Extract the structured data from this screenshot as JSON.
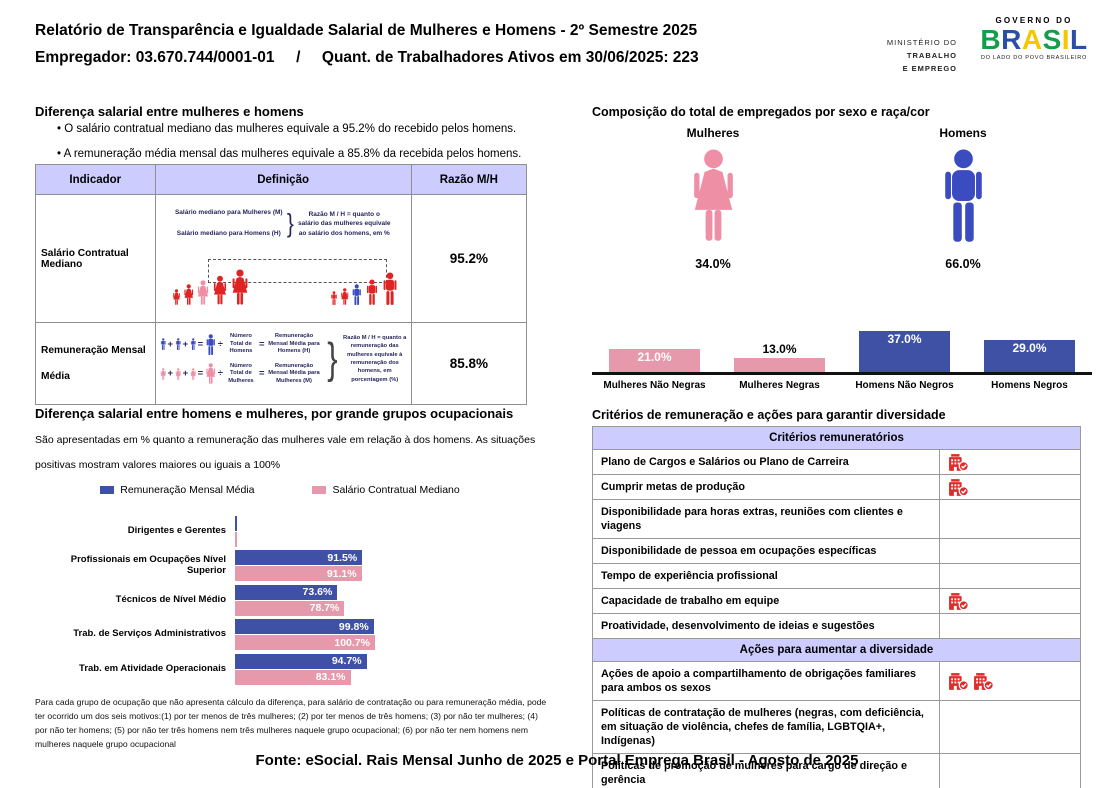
{
  "header": {
    "title_line1": "Relatório de Transparência e Igualdade Salarial de Mulheres e Homens - 2º Semestre 2025",
    "title_line2": "Empregador: 03.670.744/0001-01     /     Quant. de Trabalhadores Ativos em 30/06/2025: 223",
    "ministry": {
      "line1": "MINISTÉRIO DO",
      "line2": "TRABALHO",
      "line3": "E EMPREGO"
    },
    "gov_logo": {
      "top": "GOVERNO DO",
      "brand": "BRASIL",
      "bottom": "DO LADO DO POVO BRASILEIRO"
    }
  },
  "salary_gap": {
    "title": "Diferença salarial entre mulheres e homens",
    "bullets": [
      "O salário contratual mediano das mulheres equivale a 95.2% do recebido pelos homens.",
      "A remuneração média mensal das mulheres equivale a 85.8% da recebida pelos homens."
    ],
    "table": {
      "headers": [
        "Indicador",
        "Definição",
        "Razão M/H"
      ],
      "rows": [
        {
          "indicator": "Salário Contratual Mediano",
          "def_line1": "Salário mediano para Mulheres (M)",
          "def_line2": "Salário mediano para Homens (H)",
          "def_note": "Razão M / H = quanto o salário das mulheres equivale ao salário dos homens, em %",
          "ratio": "95.2%"
        },
        {
          "indicator": "Remuneração Mensal Média",
          "num_h": "Número Total de Homens",
          "rem_h": "Remuneração Mensal Média para Homens (H)",
          "num_m": "Número Total de Mulheres",
          "rem_m": "Remuneração Mensal Média para Mulheres (M)",
          "def_note": "Razão M / H = quanto a remuneração das mulheres equivale à remuneração dos homens, em porcentagem (%)",
          "ratio": "85.8%"
        }
      ]
    }
  },
  "symbols": {
    "plus": "+",
    "equals": "=",
    "divide": "÷",
    "brace": "}"
  },
  "occupational_chart": {
    "title": "Diferença salarial entre homens e mulheres, por grande grupos ocupacionais",
    "subtitle": "São apresentadas em % quanto a remuneração das mulheres vale em relação à dos homens. As situações positivas mostram valores maiores ou iguais a 100%",
    "footnote": "Para cada grupo de ocupação que não apresenta cálculo da diferença, para salário de contratação ou para remuneração média, pode ter ocorrido um dos seis motivos:(1) por ter menos de três mulheres; (2) por ter menos de três homens; (3) por não ter mulheres; (4) por não ter homens; (5) por não ter três homens nem três mulheres naquele grupo ocupacional; (6) por não ter nem homens nem mulheres naquele grupo ocupacional",
    "chart_data": {
      "type": "bar",
      "orientation": "horizontal",
      "categories": [
        "Dirigentes e Gerentes",
        "Profissionais em Ocupações Nível Superior",
        "Técnicos de Nível Médio",
        "Trab. de Serviços Administrativos",
        "Trab. em Atividade Operacionais"
      ],
      "series": [
        {
          "name": "Remuneração Mensal Média",
          "color": "#3f51a5",
          "values": [
            null,
            91.5,
            73.6,
            99.8,
            94.7
          ]
        },
        {
          "name": "Salário Contratual Mediano",
          "color": "#e599aa",
          "values": [
            null,
            91.1,
            78.7,
            100.7,
            83.1
          ]
        }
      ],
      "value_suffix": "%",
      "xlim": [
        0,
        105
      ],
      "legend_position": "top"
    }
  },
  "composition": {
    "title": "Composição do total de empregados por sexo e raça/cor",
    "female_label": "Mulheres",
    "female_pct": "34.0%",
    "male_label": "Homens",
    "male_pct": "66.0%",
    "chart_data": {
      "type": "bar",
      "categories": [
        "Mulheres Não Negras",
        "Mulheres Negras",
        "Homens Não Negros",
        "Homens Negros"
      ],
      "values": [
        21.0,
        13.0,
        37.0,
        29.0
      ],
      "colors": [
        "#e599aa",
        "#e599aa",
        "#3f51a5",
        "#3f51a5"
      ],
      "label_positions": [
        "inside",
        "above",
        "inside",
        "inside"
      ],
      "value_suffix": "%"
    }
  },
  "criteria": {
    "title": "Critérios de remuneração e ações para garantir diversidade",
    "sections": [
      {
        "header": "Critérios remuneratórios",
        "rows": [
          {
            "label": "Plano de Cargos e Salários ou Plano de Carreira",
            "icons": 1
          },
          {
            "label": "Cumprir metas de produção",
            "icons": 1
          },
          {
            "label": "Disponibilidade para horas extras, reuniões com clientes e viagens",
            "icons": 0
          },
          {
            "label": "Disponibilidade de pessoa em ocupações específicas",
            "icons": 0
          },
          {
            "label": "Tempo de experiência profissional",
            "icons": 0
          },
          {
            "label": "Capacidade de trabalho em equipe",
            "icons": 1
          },
          {
            "label": "Proatividade, desenvolvimento de ideias e sugestões",
            "icons": 0
          }
        ]
      },
      {
        "header": "Ações para aumentar a diversidade",
        "rows": [
          {
            "label": "Ações de apoio a compartilhamento de obrigações familiares para ambos os sexos",
            "icons": 2
          },
          {
            "label": "Políticas de contratação de mulheres (negras, com deficiência, em situação de violência, chefes de família, LGBTQIA+, Indígenas)",
            "icons": 0
          },
          {
            "label": "Políticas de promoção de mulheres para cargo de direção e gerência",
            "icons": 0
          }
        ]
      }
    ]
  },
  "footer": {
    "source": "Fonte: eSocial. Rais Mensal Junho de 2025 e Portal Emprega Brasil - Agosto de 2025"
  },
  "colors": {
    "accent_blue": "#3f51a5",
    "accent_pink": "#e599aa",
    "figure_blue": "#3b4cc0",
    "figure_pink": "#ef8fa6",
    "figure_red": "#e02424",
    "icon_red": "#e02b2b",
    "table_header_bg": "#ccccff",
    "brand_letter_colors": [
      "#149e4c",
      "#2b4ea8",
      "#f6c700",
      "#149e4c",
      "#f6c700",
      "#2b4ea8"
    ]
  }
}
